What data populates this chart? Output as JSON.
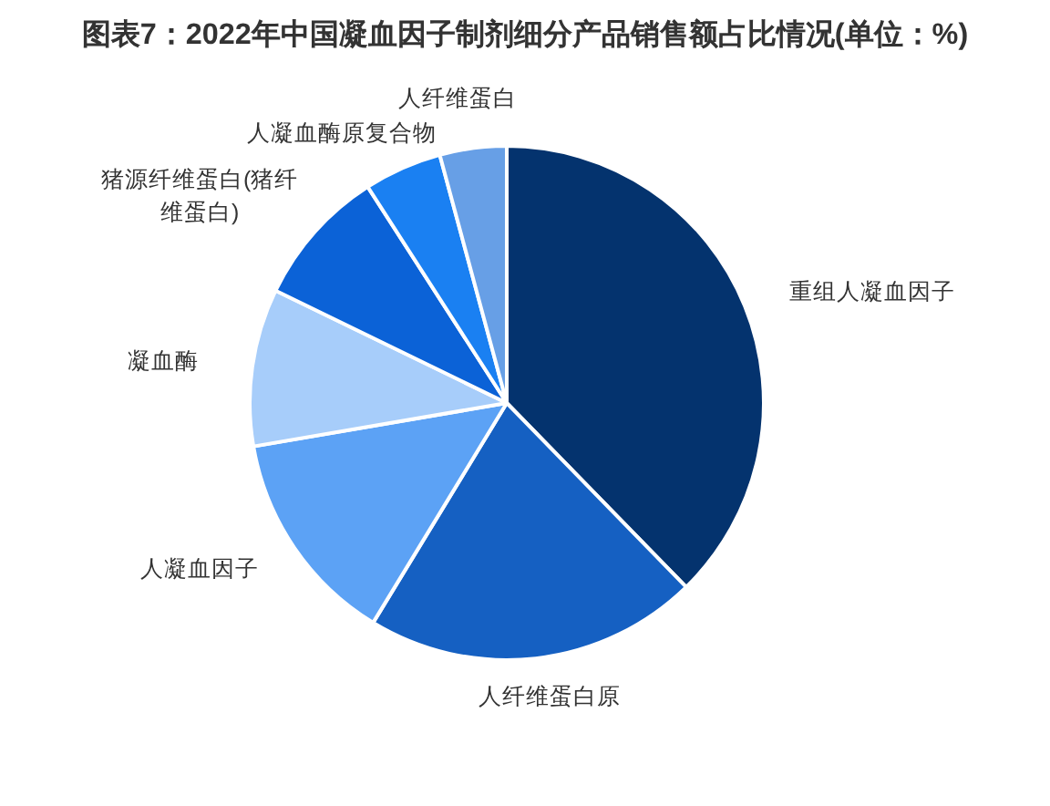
{
  "chart_data": {
    "type": "pie",
    "title": "图表7：2022年中国凝血因子制剂细分产品销售额占比情况(单位：%)",
    "categories": [
      "重组人凝血因子",
      "人纤维蛋白原",
      "人凝血因子",
      "凝血酶",
      "猪源纤维蛋白(猪纤维蛋白)",
      "人凝血酶原复合物",
      "人纤维蛋白"
    ],
    "values": [
      37.7,
      21.0,
      13.6,
      9.9,
      8.7,
      4.9,
      4.2
    ],
    "colors": [
      "#04336e",
      "#1560c2",
      "#5ca2f5",
      "#a7cdfa",
      "#0b62d7",
      "#1a80f2",
      "#679fe6"
    ]
  }
}
